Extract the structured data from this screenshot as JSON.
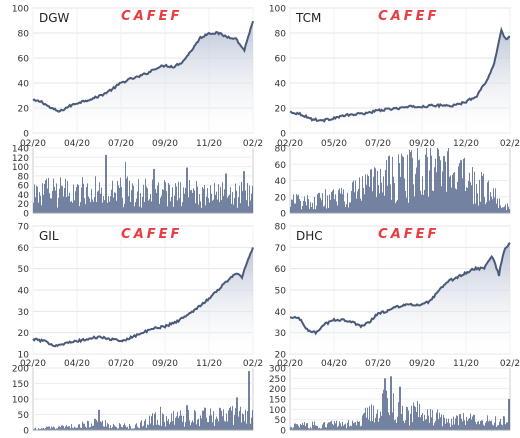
{
  "brand": {
    "watermark": "CAFEF",
    "accent_color": "#e8262d",
    "series_color": "#4a5a78",
    "fill_color": "#b8c2d4",
    "volume_color": "#52648a"
  },
  "chart_data": [
    {
      "type": "area",
      "title": "DGW",
      "x_tick_labels": [
        "02/20",
        "04/20",
        "07/20",
        "09/20",
        "11/20",
        "02/2"
      ],
      "x": [
        0.0,
        0.04,
        0.08,
        0.12,
        0.16,
        0.2,
        0.24,
        0.28,
        0.32,
        0.36,
        0.4,
        0.44,
        0.48,
        0.52,
        0.56,
        0.6,
        0.64,
        0.68,
        0.72,
        0.76,
        0.8,
        0.84,
        0.88,
        0.92,
        0.96,
        1.0
      ],
      "values": [
        26,
        25,
        20,
        17,
        21,
        24,
        26,
        28,
        31,
        35,
        40,
        43,
        45,
        48,
        52,
        54,
        53,
        57,
        66,
        76,
        80,
        80,
        77,
        76,
        66,
        90
      ],
      "ylim": [
        0,
        100
      ],
      "y_ticks": [
        0,
        20,
        40,
        60,
        80,
        100
      ],
      "volume": {
        "y_ticks": [
          0,
          20,
          40,
          60,
          80,
          100,
          120,
          140
        ],
        "ylim": [
          0,
          140
        ],
        "profile": [
          {
            "x": 0,
            "level": 45
          },
          {
            "x": 0.3,
            "level": 50
          },
          {
            "x": 0.6,
            "level": 45
          },
          {
            "x": 1,
            "level": 40
          }
        ],
        "spikes": [
          {
            "x": 0.33,
            "v": 125
          },
          {
            "x": 0.42,
            "v": 110
          },
          {
            "x": 0.55,
            "v": 95
          },
          {
            "x": 0.7,
            "v": 98
          },
          {
            "x": 0.88,
            "v": 85
          },
          {
            "x": 0.96,
            "v": 90
          }
        ]
      }
    },
    {
      "type": "area",
      "title": "TCM",
      "x_tick_labels": [
        "02/20",
        "05/20",
        "07/20",
        "09/20",
        "12/20",
        "02/2"
      ],
      "x": [
        0.0,
        0.05,
        0.1,
        0.15,
        0.2,
        0.25,
        0.3,
        0.35,
        0.4,
        0.45,
        0.5,
        0.55,
        0.6,
        0.65,
        0.7,
        0.75,
        0.8,
        0.85,
        0.9,
        0.93,
        0.96,
        0.98,
        1.0
      ],
      "values": [
        17,
        15,
        11,
        10,
        12,
        14,
        15,
        16,
        18,
        19,
        20,
        21,
        21,
        22,
        22,
        22,
        25,
        30,
        44,
        56,
        83,
        75,
        77
      ],
      "ylim": [
        0,
        100
      ],
      "y_ticks": [
        0,
        20,
        40,
        60,
        80,
        100
      ],
      "volume": {
        "y_ticks": [
          0,
          20,
          40,
          60,
          80
        ],
        "ylim": [
          0,
          80
        ],
        "profile": [
          {
            "x": 0,
            "level": 15
          },
          {
            "x": 0.25,
            "level": 20
          },
          {
            "x": 0.45,
            "level": 45
          },
          {
            "x": 0.7,
            "level": 55
          },
          {
            "x": 0.88,
            "level": 30
          },
          {
            "x": 1,
            "level": 8
          }
        ],
        "spikes": [
          {
            "x": 0.45,
            "v": 70
          },
          {
            "x": 0.55,
            "v": 75
          },
          {
            "x": 0.62,
            "v": 72
          },
          {
            "x": 0.7,
            "v": 70
          },
          {
            "x": 0.78,
            "v": 65
          }
        ]
      }
    },
    {
      "type": "area",
      "title": "GIL",
      "x_tick_labels": [
        "02/20",
        "04/20",
        "07/20",
        "09/20",
        "11/20",
        "02/2"
      ],
      "x": [
        0.0,
        0.05,
        0.1,
        0.15,
        0.2,
        0.25,
        0.3,
        0.35,
        0.4,
        0.45,
        0.5,
        0.55,
        0.6,
        0.65,
        0.7,
        0.75,
        0.8,
        0.85,
        0.88,
        0.92,
        0.95,
        0.97,
        1.0
      ],
      "values": [
        17,
        16,
        14,
        15,
        16,
        17,
        18,
        17,
        16,
        18,
        20,
        22,
        23,
        25,
        28,
        32,
        36,
        41,
        44,
        48,
        46,
        52,
        60
      ],
      "ylim": [
        10,
        70
      ],
      "y_ticks": [
        10,
        20,
        30,
        40,
        50,
        60,
        70
      ],
      "volume": {
        "y_ticks": [
          0,
          50,
          100,
          150,
          200
        ],
        "ylim": [
          0,
          200
        ],
        "profile": [
          {
            "x": 0,
            "level": 5
          },
          {
            "x": 0.15,
            "level": 10
          },
          {
            "x": 0.3,
            "level": 25
          },
          {
            "x": 0.45,
            "level": 12
          },
          {
            "x": 0.55,
            "level": 35
          },
          {
            "x": 0.8,
            "level": 45
          },
          {
            "x": 1,
            "level": 55
          }
        ],
        "spikes": [
          {
            "x": 0.3,
            "v": 65
          },
          {
            "x": 0.58,
            "v": 75
          },
          {
            "x": 0.7,
            "v": 80
          },
          {
            "x": 0.93,
            "v": 105
          },
          {
            "x": 0.985,
            "v": 190
          }
        ]
      }
    },
    {
      "type": "area",
      "title": "DHC",
      "x_tick_labels": [
        "02/20",
        "04/20",
        "07/20",
        "09/20",
        "11/20",
        "02/2"
      ],
      "x": [
        0.0,
        0.04,
        0.08,
        0.12,
        0.16,
        0.2,
        0.24,
        0.28,
        0.32,
        0.36,
        0.4,
        0.44,
        0.48,
        0.52,
        0.56,
        0.6,
        0.64,
        0.68,
        0.72,
        0.76,
        0.8,
        0.84,
        0.88,
        0.92,
        0.95,
        0.97,
        1.0
      ],
      "values": [
        37,
        37,
        31,
        30,
        34,
        36,
        36,
        35,
        33,
        35,
        39,
        40,
        42,
        43,
        43,
        43,
        45,
        50,
        54,
        56,
        58,
        60,
        60,
        66,
        57,
        68,
        72
      ],
      "ylim": [
        20,
        80
      ],
      "y_ticks": [
        20,
        30,
        40,
        50,
        60,
        70,
        80
      ],
      "volume": {
        "y_ticks": [
          0,
          50,
          100,
          150,
          200,
          250,
          300
        ],
        "ylim": [
          0,
          300
        ],
        "profile": [
          {
            "x": 0,
            "level": 25
          },
          {
            "x": 0.3,
            "level": 30
          },
          {
            "x": 0.42,
            "level": 130
          },
          {
            "x": 0.52,
            "level": 90
          },
          {
            "x": 0.7,
            "level": 55
          },
          {
            "x": 1,
            "level": 40
          }
        ],
        "spikes": [
          {
            "x": 0.43,
            "v": 250
          },
          {
            "x": 0.46,
            "v": 260
          },
          {
            "x": 0.5,
            "v": 210
          },
          {
            "x": 0.58,
            "v": 140
          },
          {
            "x": 0.999,
            "v": 150
          }
        ]
      }
    }
  ]
}
